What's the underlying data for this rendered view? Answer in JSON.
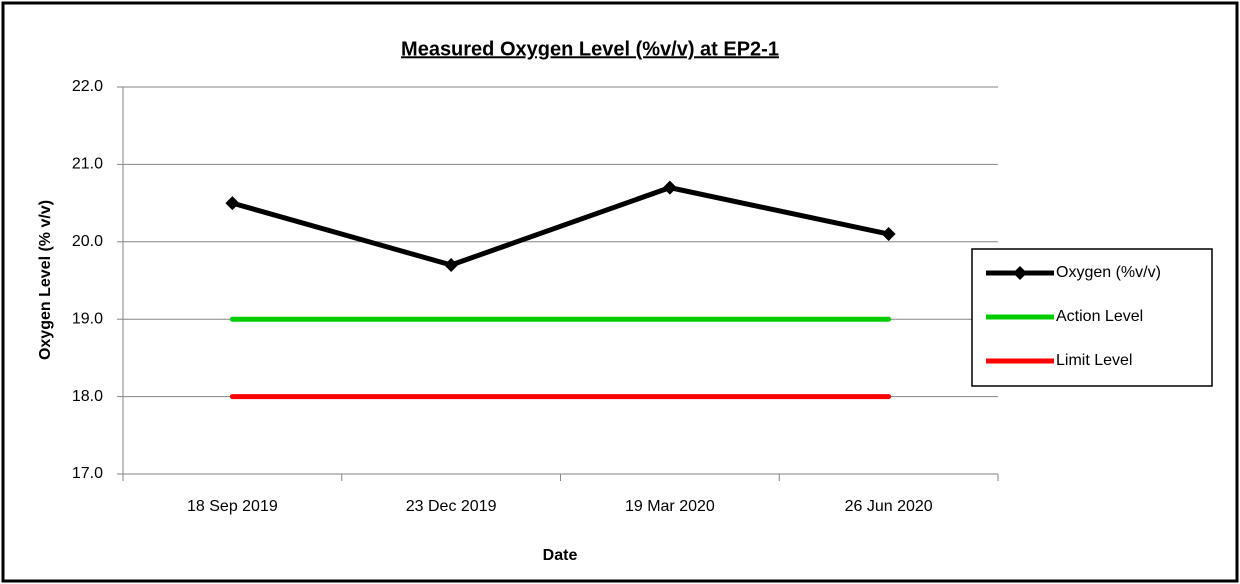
{
  "chart_data": {
    "type": "line",
    "title": "Measured Oxygen Level (%v/v) at EP2-1",
    "x_label": "Date",
    "y_label": "Oxygen Level (% v/v)",
    "categories": [
      "18 Sep 2019",
      "23 Dec 2019",
      "19 Mar 2020",
      "26 Jun 2020"
    ],
    "series": [
      {
        "name": "Oxygen (%v/v)",
        "color": "#000000",
        "marker": "diamond",
        "values": [
          20.5,
          19.7,
          20.7,
          20.1
        ]
      },
      {
        "name": "Action Level",
        "color": "#00cc00",
        "values": [
          19,
          19,
          19,
          19
        ]
      },
      {
        "name": "Limit Level",
        "color": "#ff0000",
        "values": [
          18,
          18,
          18,
          18
        ]
      }
    ],
    "ylim": [
      17,
      22
    ],
    "yticks": [
      {
        "value": 17,
        "label": "17.0"
      },
      {
        "value": 18,
        "label": "18.0"
      },
      {
        "value": 19,
        "label": "19.0"
      },
      {
        "value": 20,
        "label": "20.0"
      },
      {
        "value": 21,
        "label": "21.0"
      },
      {
        "value": 22,
        "label": "22.0"
      }
    ],
    "grid": true,
    "legend": "right"
  }
}
